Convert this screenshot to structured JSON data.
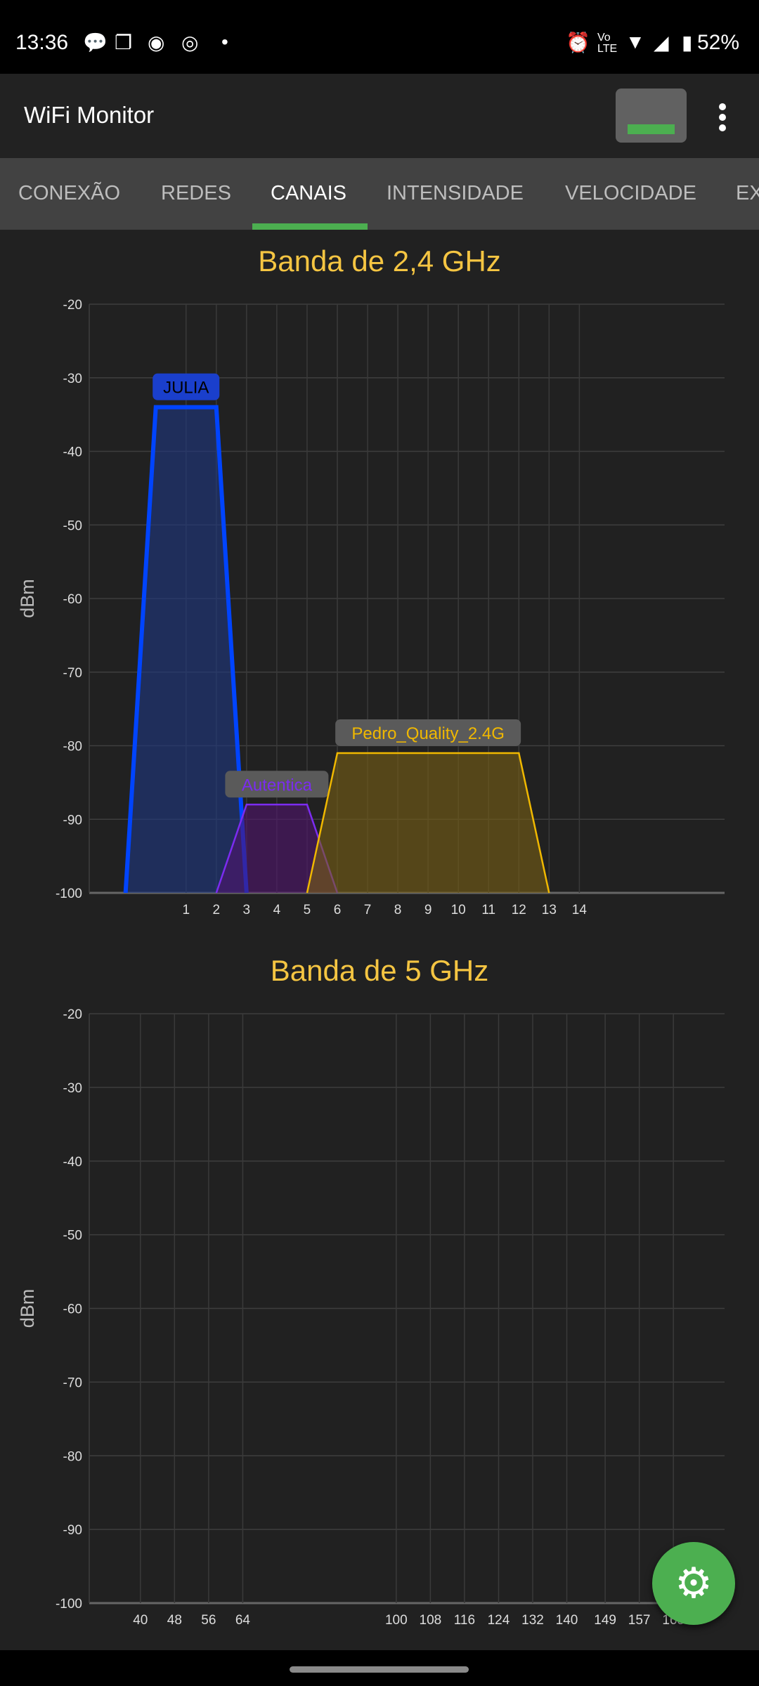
{
  "status": {
    "time": "13:36",
    "battery": "52%",
    "icons": [
      "chat-bubble-icon",
      "messages-icon",
      "messenger-icon",
      "instagram-icon",
      "dot-icon",
      "alarm-icon",
      "volte-icon",
      "wifi-icon",
      "signal-icon",
      "battery-icon"
    ]
  },
  "appbar": {
    "title": "WiFi Monitor"
  },
  "tabs": [
    {
      "label": "CONEXÃO"
    },
    {
      "label": "REDES"
    },
    {
      "label": "CANAIS",
      "active": true
    },
    {
      "label": "INTENSIDADE"
    },
    {
      "label": "VELOCIDADE"
    },
    {
      "label": "EX"
    }
  ],
  "accent": "#4caf50",
  "chart_data": [
    {
      "type": "area",
      "title": "Banda de 2,4 GHz",
      "ylabel": "dBm",
      "ylim": [
        -100,
        -20
      ],
      "yticks": [
        -20,
        -30,
        -40,
        -50,
        -60,
        -70,
        -80,
        -90,
        -100
      ],
      "xlim": [
        -2.2,
        18.8
      ],
      "xticks": [
        1,
        2,
        3,
        4,
        5,
        6,
        7,
        8,
        9,
        10,
        11,
        12,
        13,
        14
      ],
      "grid": true,
      "series": [
        {
          "name": "JULIA",
          "channel": 1,
          "level": -34,
          "points": [
            [
              -1,
              -100
            ],
            [
              0,
              -34
            ],
            [
              2,
              -34
            ],
            [
              3,
              -100
            ]
          ],
          "color": "#0044ff",
          "fill": "rgba(30,55,130,0.6)",
          "label_bg": "#1a3fcc",
          "label_color": "#000000",
          "stroke": 6
        },
        {
          "name": "Autentica",
          "channel": 4,
          "level": -88,
          "points": [
            [
              2,
              -100
            ],
            [
              3,
              -88
            ],
            [
              5,
              -88
            ],
            [
              6,
              -100
            ]
          ],
          "color": "#7b2cf0",
          "fill": "rgba(80,20,110,0.6)",
          "label_bg": "#5a5a5a",
          "label_color": "#7b2cf0",
          "stroke": 2.5
        },
        {
          "name": "Pedro_Quality_2.4G",
          "channel": 9,
          "level": -81,
          "points": [
            [
              5,
              -100
            ],
            [
              6,
              -81
            ],
            [
              12,
              -81
            ],
            [
              13,
              -100
            ]
          ],
          "color": "#f0b800",
          "fill": "rgba(120,95,20,0.6)",
          "label_bg": "#5a5a5a",
          "label_color": "#f0b800",
          "stroke": 2.5
        }
      ]
    },
    {
      "type": "area",
      "title": "Banda de 5 GHz",
      "ylabel": "dBm",
      "ylim": [
        -100,
        -20
      ],
      "yticks": [
        -20,
        -30,
        -40,
        -50,
        -60,
        -70,
        -80,
        -90,
        -100
      ],
      "xlim": [
        28,
        177
      ],
      "xticks": [
        40,
        48,
        56,
        64,
        100,
        108,
        116,
        124,
        132,
        140,
        149,
        157,
        165
      ],
      "grid": true,
      "series": []
    }
  ],
  "fab": {
    "icon": "gear-icon"
  }
}
